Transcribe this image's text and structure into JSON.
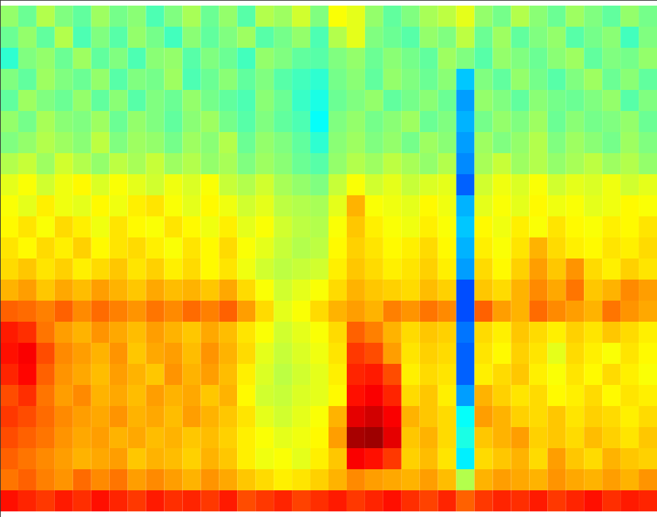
{
  "chart_data": {
    "type": "heatmap",
    "tick_labels": false,
    "zlim": [
      0,
      1
    ],
    "cells": [
      [
        0.52,
        0.48,
        0.55,
        0.5,
        0.47,
        0.53,
        0.49,
        0.51,
        0.45,
        0.5,
        0.54,
        0.48,
        0.52,
        0.46,
        0.55,
        0.53,
        0.58,
        0.5,
        0.62,
        0.6,
        0.52,
        0.47,
        0.5,
        0.54,
        0.56,
        0.6,
        0.52,
        0.49,
        0.55,
        0.51,
        0.48,
        0.53,
        0.5,
        0.47,
        0.52,
        0.49
      ],
      [
        0.48,
        0.52,
        0.47,
        0.55,
        0.45,
        0.5,
        0.46,
        0.52,
        0.49,
        0.44,
        0.51,
        0.47,
        0.5,
        0.53,
        0.46,
        0.49,
        0.52,
        0.45,
        0.55,
        0.6,
        0.5,
        0.48,
        0.46,
        0.52,
        0.5,
        0.56,
        0.48,
        0.53,
        0.47,
        0.5,
        0.52,
        0.46,
        0.49,
        0.51,
        0.44,
        0.5
      ],
      [
        0.42,
        0.5,
        0.52,
        0.48,
        0.53,
        0.47,
        0.5,
        0.45,
        0.51,
        0.52,
        0.46,
        0.5,
        0.48,
        0.44,
        0.52,
        0.5,
        0.47,
        0.46,
        0.5,
        0.52,
        0.48,
        0.51,
        0.49,
        0.47,
        0.53,
        0.5,
        0.46,
        0.52,
        0.5,
        0.48,
        0.51,
        0.53,
        0.47,
        0.5,
        0.49,
        0.52
      ],
      [
        0.5,
        0.47,
        0.53,
        0.5,
        0.48,
        0.52,
        0.46,
        0.5,
        0.49,
        0.53,
        0.45,
        0.48,
        0.51,
        0.47,
        0.5,
        0.46,
        0.44,
        0.42,
        0.49,
        0.51,
        0.47,
        0.52,
        0.5,
        0.48,
        0.51,
        0.32,
        0.5,
        0.47,
        0.52,
        0.49,
        0.46,
        0.5,
        0.53,
        0.48,
        0.51,
        0.47
      ],
      [
        0.47,
        0.53,
        0.5,
        0.48,
        0.52,
        0.47,
        0.51,
        0.46,
        0.5,
        0.48,
        0.52,
        0.49,
        0.47,
        0.45,
        0.51,
        0.48,
        0.43,
        0.4,
        0.48,
        0.5,
        0.52,
        0.47,
        0.49,
        0.51,
        0.48,
        0.28,
        0.52,
        0.5,
        0.47,
        0.51,
        0.49,
        0.48,
        0.5,
        0.52,
        0.46,
        0.5
      ],
      [
        0.52,
        0.49,
        0.54,
        0.51,
        0.5,
        0.53,
        0.48,
        0.52,
        0.5,
        0.47,
        0.51,
        0.53,
        0.49,
        0.46,
        0.5,
        0.47,
        0.45,
        0.38,
        0.5,
        0.52,
        0.49,
        0.51,
        0.53,
        0.48,
        0.5,
        0.3,
        0.49,
        0.52,
        0.5,
        0.53,
        0.48,
        0.51,
        0.49,
        0.5,
        0.52,
        0.48
      ],
      [
        0.5,
        0.52,
        0.55,
        0.53,
        0.51,
        0.56,
        0.5,
        0.53,
        0.52,
        0.49,
        0.53,
        0.51,
        0.55,
        0.48,
        0.52,
        0.5,
        0.47,
        0.42,
        0.51,
        0.53,
        0.5,
        0.52,
        0.49,
        0.53,
        0.51,
        0.28,
        0.53,
        0.5,
        0.52,
        0.55,
        0.5,
        0.53,
        0.51,
        0.49,
        0.53,
        0.5
      ],
      [
        0.55,
        0.57,
        0.53,
        0.58,
        0.55,
        0.52,
        0.56,
        0.54,
        0.57,
        0.53,
        0.55,
        0.52,
        0.54,
        0.5,
        0.53,
        0.51,
        0.48,
        0.46,
        0.52,
        0.55,
        0.53,
        0.56,
        0.54,
        0.52,
        0.55,
        0.26,
        0.54,
        0.57,
        0.53,
        0.55,
        0.52,
        0.54,
        0.56,
        0.53,
        0.55,
        0.52
      ],
      [
        0.6,
        0.62,
        0.58,
        0.61,
        0.63,
        0.59,
        0.62,
        0.6,
        0.58,
        0.61,
        0.59,
        0.62,
        0.57,
        0.55,
        0.58,
        0.54,
        0.52,
        0.5,
        0.57,
        0.62,
        0.58,
        0.6,
        0.57,
        0.59,
        0.6,
        0.22,
        0.58,
        0.61,
        0.59,
        0.62,
        0.58,
        0.6,
        0.59,
        0.61,
        0.58,
        0.6
      ],
      [
        0.62,
        0.6,
        0.64,
        0.61,
        0.6,
        0.63,
        0.61,
        0.64,
        0.65,
        0.62,
        0.6,
        0.63,
        0.61,
        0.58,
        0.6,
        0.56,
        0.55,
        0.54,
        0.6,
        0.7,
        0.62,
        0.61,
        0.6,
        0.63,
        0.61,
        0.3,
        0.6,
        0.62,
        0.6,
        0.63,
        0.61,
        0.62,
        0.6,
        0.61,
        0.63,
        0.62
      ],
      [
        0.63,
        0.65,
        0.62,
        0.66,
        0.64,
        0.61,
        0.65,
        0.63,
        0.62,
        0.65,
        0.63,
        0.61,
        0.64,
        0.6,
        0.62,
        0.58,
        0.56,
        0.55,
        0.62,
        0.68,
        0.64,
        0.62,
        0.61,
        0.64,
        0.62,
        0.32,
        0.63,
        0.61,
        0.64,
        0.62,
        0.65,
        0.63,
        0.62,
        0.64,
        0.63,
        0.65
      ],
      [
        0.65,
        0.63,
        0.66,
        0.64,
        0.67,
        0.63,
        0.65,
        0.66,
        0.64,
        0.62,
        0.65,
        0.63,
        0.66,
        0.62,
        0.6,
        0.57,
        0.55,
        0.56,
        0.63,
        0.67,
        0.65,
        0.63,
        0.64,
        0.66,
        0.63,
        0.3,
        0.64,
        0.62,
        0.65,
        0.7,
        0.66,
        0.64,
        0.63,
        0.65,
        0.64,
        0.66
      ],
      [
        0.66,
        0.68,
        0.65,
        0.67,
        0.64,
        0.66,
        0.68,
        0.65,
        0.67,
        0.64,
        0.66,
        0.63,
        0.65,
        0.61,
        0.58,
        0.56,
        0.57,
        0.58,
        0.64,
        0.68,
        0.66,
        0.64,
        0.65,
        0.67,
        0.64,
        0.28,
        0.66,
        0.63,
        0.67,
        0.72,
        0.68,
        0.73,
        0.66,
        0.64,
        0.67,
        0.65
      ],
      [
        0.7,
        0.72,
        0.68,
        0.71,
        0.69,
        0.72,
        0.7,
        0.68,
        0.71,
        0.69,
        0.7,
        0.68,
        0.71,
        0.66,
        0.62,
        0.58,
        0.6,
        0.62,
        0.66,
        0.7,
        0.68,
        0.67,
        0.66,
        0.69,
        0.67,
        0.2,
        0.68,
        0.66,
        0.7,
        0.74,
        0.71,
        0.76,
        0.68,
        0.7,
        0.74,
        0.72
      ],
      [
        0.78,
        0.77,
        0.75,
        0.78,
        0.74,
        0.77,
        0.75,
        0.73,
        0.76,
        0.74,
        0.77,
        0.75,
        0.78,
        0.72,
        0.66,
        0.6,
        0.62,
        0.66,
        0.7,
        0.72,
        0.7,
        0.75,
        0.73,
        0.76,
        0.74,
        0.2,
        0.78,
        0.72,
        0.7,
        0.77,
        0.74,
        0.72,
        0.7,
        0.76,
        0.73,
        0.71
      ],
      [
        0.85,
        0.83,
        0.76,
        0.72,
        0.7,
        0.73,
        0.71,
        0.69,
        0.72,
        0.7,
        0.68,
        0.71,
        0.69,
        0.65,
        0.62,
        0.58,
        0.6,
        0.62,
        0.66,
        0.78,
        0.75,
        0.7,
        0.66,
        0.68,
        0.67,
        0.24,
        0.66,
        0.64,
        0.68,
        0.66,
        0.64,
        0.67,
        0.65,
        0.68,
        0.66,
        0.64
      ],
      [
        0.86,
        0.88,
        0.8,
        0.74,
        0.72,
        0.7,
        0.73,
        0.68,
        0.71,
        0.72,
        0.69,
        0.73,
        0.7,
        0.66,
        0.6,
        0.57,
        0.59,
        0.61,
        0.65,
        0.82,
        0.8,
        0.72,
        0.65,
        0.67,
        0.66,
        0.22,
        0.65,
        0.63,
        0.67,
        0.65,
        0.6,
        0.66,
        0.64,
        0.62,
        0.65,
        0.63
      ],
      [
        0.84,
        0.87,
        0.78,
        0.73,
        0.71,
        0.69,
        0.72,
        0.7,
        0.68,
        0.73,
        0.7,
        0.72,
        0.69,
        0.64,
        0.59,
        0.56,
        0.58,
        0.6,
        0.64,
        0.84,
        0.85,
        0.8,
        0.64,
        0.66,
        0.65,
        0.22,
        0.64,
        0.66,
        0.68,
        0.64,
        0.62,
        0.65,
        0.63,
        0.66,
        0.64,
        0.62
      ],
      [
        0.8,
        0.83,
        0.76,
        0.72,
        0.74,
        0.7,
        0.71,
        0.69,
        0.72,
        0.7,
        0.71,
        0.68,
        0.7,
        0.63,
        0.58,
        0.57,
        0.59,
        0.6,
        0.63,
        0.86,
        0.88,
        0.84,
        0.66,
        0.68,
        0.64,
        0.28,
        0.7,
        0.67,
        0.65,
        0.66,
        0.63,
        0.64,
        0.66,
        0.63,
        0.65,
        0.64
      ],
      [
        0.82,
        0.8,
        0.77,
        0.74,
        0.72,
        0.71,
        0.73,
        0.7,
        0.71,
        0.69,
        0.72,
        0.7,
        0.68,
        0.65,
        0.6,
        0.58,
        0.6,
        0.62,
        0.7,
        0.9,
        0.92,
        0.88,
        0.7,
        0.68,
        0.66,
        0.38,
        0.72,
        0.7,
        0.67,
        0.66,
        0.68,
        0.65,
        0.67,
        0.66,
        0.64,
        0.66
      ],
      [
        0.8,
        0.78,
        0.76,
        0.73,
        0.71,
        0.72,
        0.7,
        0.71,
        0.69,
        0.7,
        0.68,
        0.69,
        0.67,
        0.64,
        0.62,
        0.6,
        0.61,
        0.63,
        0.72,
        0.96,
        0.97,
        0.9,
        0.68,
        0.7,
        0.66,
        0.4,
        0.68,
        0.7,
        0.72,
        0.67,
        0.68,
        0.66,
        0.69,
        0.67,
        0.65,
        0.68
      ],
      [
        0.78,
        0.76,
        0.74,
        0.72,
        0.7,
        0.71,
        0.72,
        0.68,
        0.7,
        0.69,
        0.67,
        0.7,
        0.68,
        0.64,
        0.61,
        0.62,
        0.6,
        0.64,
        0.68,
        0.88,
        0.86,
        0.82,
        0.67,
        0.69,
        0.65,
        0.36,
        0.66,
        0.68,
        0.7,
        0.66,
        0.72,
        0.68,
        0.66,
        0.7,
        0.68,
        0.67
      ],
      [
        0.76,
        0.78,
        0.75,
        0.73,
        0.77,
        0.74,
        0.76,
        0.72,
        0.74,
        0.72,
        0.7,
        0.73,
        0.71,
        0.68,
        0.66,
        0.64,
        0.65,
        0.67,
        0.7,
        0.74,
        0.72,
        0.71,
        0.7,
        0.72,
        0.69,
        0.55,
        0.7,
        0.72,
        0.71,
        0.7,
        0.73,
        0.71,
        0.7,
        0.72,
        0.7,
        0.73
      ],
      [
        0.86,
        0.84,
        0.82,
        0.85,
        0.83,
        0.86,
        0.84,
        0.82,
        0.85,
        0.83,
        0.84,
        0.82,
        0.85,
        0.8,
        0.82,
        0.84,
        0.81,
        0.83,
        0.85,
        0.82,
        0.84,
        0.86,
        0.83,
        0.81,
        0.84,
        0.78,
        0.82,
        0.84,
        0.83,
        0.85,
        0.82,
        0.84,
        0.86,
        0.83,
        0.85,
        0.84
      ]
    ]
  }
}
